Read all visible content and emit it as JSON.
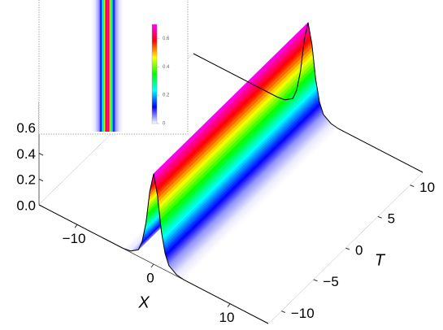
{
  "chart_data": [
    {
      "type": "surface3d",
      "xlabel": "X",
      "ylabel": "T",
      "x": [
        -15,
        -4,
        -3,
        -2,
        -1.5,
        -1,
        -0.5,
        0,
        0.5,
        1,
        1.5,
        2,
        3,
        4,
        15
      ],
      "values": [
        0,
        0,
        0.01,
        0.05,
        0.13,
        0.29,
        0.55,
        0.7,
        0.55,
        0.29,
        0.13,
        0.05,
        0.01,
        0,
        0
      ],
      "xlim": [
        -15,
        15
      ],
      "ylim": [
        -12,
        12
      ],
      "zlim": [
        0,
        0.8
      ],
      "xticks": [
        {
          "value": -10,
          "label": "−10"
        },
        0,
        10
      ],
      "yticks": [
        {
          "value": -10,
          "label": "−10"
        },
        {
          "value": -5,
          "label": "−5"
        },
        0,
        5,
        10
      ],
      "zticks": [
        {
          "value": 0,
          "label": "0.0"
        },
        0.2,
        0.4,
        0.6
      ],
      "colors": [
        "#ffffff",
        "#0000ff",
        "#00ffff",
        "#00ff00",
        "#ffff00",
        "#ff0000",
        "#ff00ff"
      ]
    },
    {
      "type": "density",
      "colorbar_lim": [
        0,
        0.7
      ],
      "colorbar_ticks": [
        0,
        0.2,
        0.4,
        0.6
      ],
      "colors": [
        "#ffffff",
        "#0000ff",
        "#00ffff",
        "#00ff00",
        "#ffff00",
        "#ff0000",
        "#ff00ff"
      ]
    }
  ]
}
